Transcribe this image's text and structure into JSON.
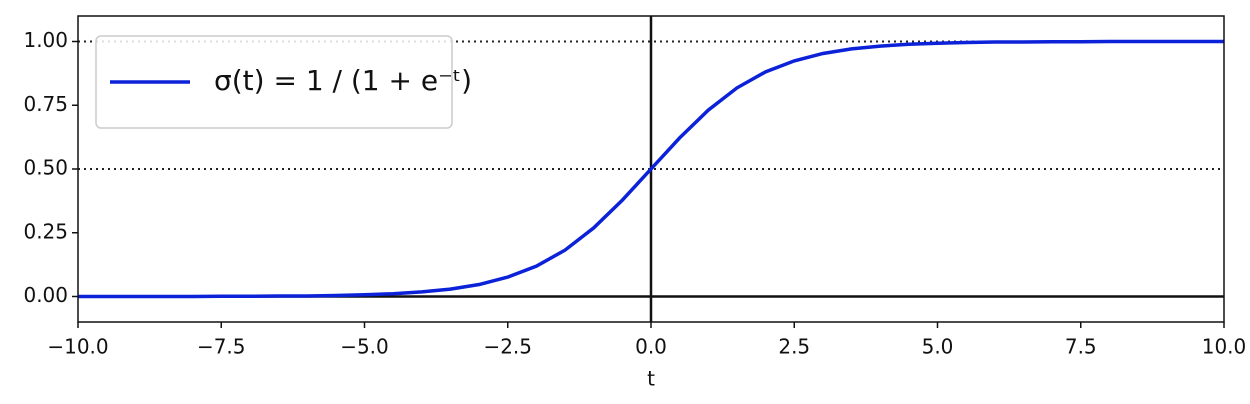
{
  "chart_data": {
    "type": "line",
    "x_label": "t",
    "x": [
      -10,
      -9.5,
      -9,
      -8.5,
      -8,
      -7.5,
      -7,
      -6.5,
      -6,
      -5.5,
      -5,
      -4.5,
      -4,
      -3.5,
      -3,
      -2.5,
      -2,
      -1.5,
      -1,
      -0.5,
      0,
      0.5,
      1,
      1.5,
      2,
      2.5,
      3,
      3.5,
      4,
      4.5,
      5,
      5.5,
      6,
      6.5,
      7,
      7.5,
      8,
      8.5,
      9,
      9.5,
      10
    ],
    "series": [
      {
        "name": "σ(t) = 1 / (1 + e⁻ᵗ)",
        "color": "#0b22d8",
        "values": [
          0,
          0,
          0,
          0,
          0,
          0.001,
          0.001,
          0.002,
          0.002,
          0.004,
          0.007,
          0.011,
          0.018,
          0.029,
          0.047,
          0.076,
          0.119,
          0.182,
          0.269,
          0.378,
          0.5,
          0.622,
          0.731,
          0.818,
          0.881,
          0.924,
          0.953,
          0.971,
          0.982,
          0.989,
          0.993,
          0.996,
          0.998,
          0.998,
          0.999,
          0.999,
          1,
          1,
          1,
          1,
          1
        ]
      }
    ],
    "xlim": [
      -10,
      10
    ],
    "ylim": [
      -0.1,
      1.1
    ],
    "xticks": [
      {
        "value": -10,
        "label": "−10.0"
      },
      {
        "value": -7.5,
        "label": "−7.5"
      },
      {
        "value": -5,
        "label": "−5.0"
      },
      {
        "value": -2.5,
        "label": "−2.5"
      },
      {
        "value": 0,
        "label": "0.0"
      },
      {
        "value": 2.5,
        "label": "2.5"
      },
      {
        "value": 5,
        "label": "5.0"
      },
      {
        "value": 7.5,
        "label": "7.5"
      },
      {
        "value": 10,
        "label": "10.0"
      }
    ],
    "yticks": [
      {
        "value": 0,
        "label": "0.00"
      },
      {
        "value": 0.25,
        "label": "0.25"
      },
      {
        "value": 0.5,
        "label": "0.50"
      },
      {
        "value": 0.75,
        "label": "0.75"
      },
      {
        "value": 1,
        "label": "1.00"
      }
    ],
    "reference_lines": {
      "dotted_y": [
        0.5,
        1
      ],
      "solid_y": [
        0
      ],
      "solid_x": [
        0
      ]
    },
    "legend": "upper left"
  }
}
